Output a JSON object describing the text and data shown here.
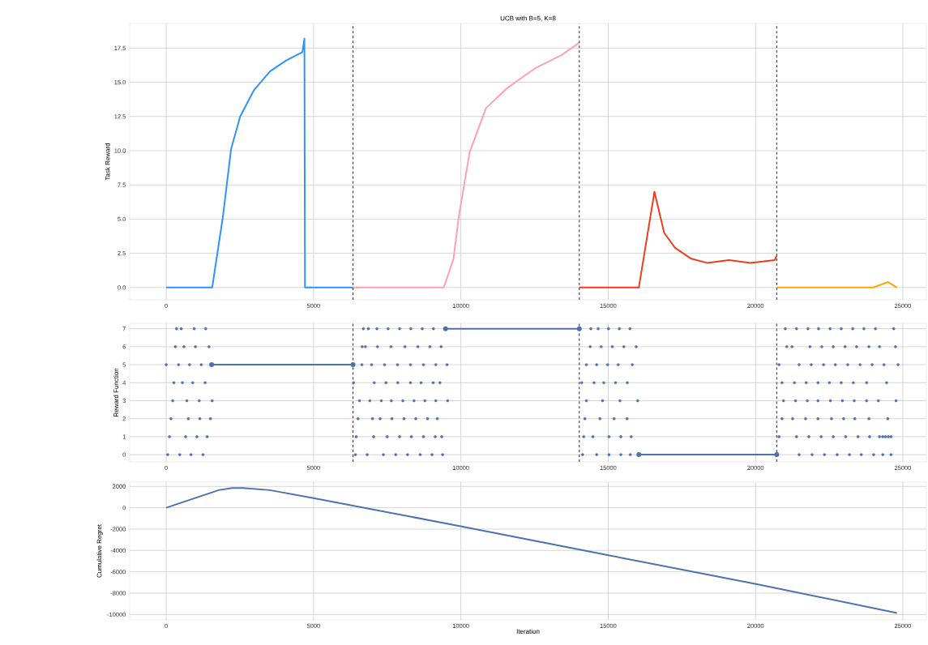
{
  "chart_data": [
    {
      "type": "line",
      "title": "UCB with B=5, K=8",
      "ylabel": "Task Reward",
      "grid": true,
      "xlim": [
        -1240,
        25800
      ],
      "ylim": [
        -0.9,
        19.3
      ],
      "xticks": [
        0,
        5000,
        10000,
        15000,
        20000,
        25000
      ],
      "yticks": [
        {
          "value": 0,
          "label": "0.0"
        },
        {
          "value": 2.5,
          "label": "2.5"
        },
        {
          "value": 5,
          "label": "5.0"
        },
        {
          "value": 7.5,
          "label": "7.5"
        },
        {
          "value": 10,
          "label": "10.0"
        },
        {
          "value": 12.5,
          "label": "12.5"
        },
        {
          "value": 15,
          "label": "15.0"
        },
        {
          "value": 17.5,
          "label": "17.5"
        }
      ],
      "ref_lines": [
        {
          "axis": "x",
          "value": 6340,
          "color": "#222222",
          "line_style": "dashed"
        },
        {
          "axis": "x",
          "value": 14020,
          "color": "#222222",
          "line_style": "dashed"
        },
        {
          "axis": "x",
          "value": 20720,
          "color": "#222222",
          "line_style": "dashed"
        }
      ],
      "series": [
        {
          "color": "#2e93ff",
          "x": [
            0,
            1560,
            1925,
            2200,
            2510,
            2970,
            3520,
            4070,
            4620,
            4690,
            4710,
            6340
          ],
          "values": [
            0,
            0,
            5.2,
            10.1,
            12.5,
            14.4,
            15.8,
            16.6,
            17.2,
            18.2,
            0,
            0
          ]
        },
        {
          "color": "#ffa0b4",
          "x": [
            6340,
            9420,
            9750,
            9930,
            10300,
            10850,
            11580,
            12500,
            13420,
            14020
          ],
          "values": [
            0,
            0,
            2.1,
            5.2,
            9.9,
            13.1,
            14.6,
            16.0,
            17.0,
            17.9
          ]
        },
        {
          "color": "#f03c1e",
          "x": [
            14020,
            16040,
            16570,
            16900,
            17270,
            17820,
            18360,
            19100,
            19830,
            20650,
            20710
          ],
          "values": [
            0,
            0,
            7.0,
            4.0,
            2.9,
            2.1,
            1.8,
            2.0,
            1.8,
            2.0,
            2.3
          ]
        },
        {
          "color": "#ffa500",
          "x": [
            20720,
            24000,
            24500,
            24800
          ],
          "values": [
            0,
            0,
            0.4,
            0
          ]
        }
      ]
    },
    {
      "type": "scatter",
      "ylabel": "Reward Function",
      "grid": true,
      "marker": "circle",
      "xlim": [
        -1240,
        25800
      ],
      "ylim": [
        -0.4,
        7.3
      ],
      "xticks": [
        0,
        5000,
        10000,
        15000,
        20000,
        25000
      ],
      "yticks": [
        0,
        1,
        2,
        3,
        4,
        5,
        6,
        7
      ],
      "ref_lines": [
        {
          "axis": "x",
          "value": 6340,
          "color": "#222222",
          "line_style": "dashed"
        },
        {
          "axis": "x",
          "value": 14020,
          "color": "#222222",
          "line_style": "dashed"
        },
        {
          "axis": "x",
          "value": 20720,
          "color": "#222222",
          "line_style": "dashed"
        }
      ],
      "series": [
        {
          "color": "#4c72b0",
          "x": [
            350,
            510,
            950,
            1340,
            6690,
            6860,
            7150,
            7530,
            7920,
            8300,
            8690,
            9070,
            14410,
            14660,
            15010,
            15380,
            15740,
            21010,
            21390,
            21780,
            22140,
            22530,
            22910,
            23300,
            23680,
            24070,
            24690
          ],
          "values": [
            7,
            7,
            7,
            7,
            7,
            7,
            7,
            7,
            7,
            7,
            7,
            7,
            7,
            7,
            7,
            7,
            7,
            7,
            7,
            7,
            7,
            7,
            7,
            7,
            7,
            7,
            7
          ]
        },
        {
          "color": "#4c72b0",
          "x": [
            310,
            600,
            990,
            1450,
            6650,
            6760,
            7170,
            7630,
            8100,
            8540,
            8950,
            9330,
            14390,
            14760,
            15140,
            15530,
            15950,
            21060,
            21240,
            21850,
            22250,
            22640,
            23040,
            23430,
            23850,
            24210,
            24750
          ],
          "values": [
            6,
            6,
            6,
            6,
            6,
            6,
            6,
            6,
            6,
            6,
            6,
            6,
            6,
            6,
            6,
            6,
            6,
            6,
            6,
            6,
            6,
            6,
            6,
            6,
            6,
            6,
            6
          ]
        },
        {
          "color": "#4c72b0",
          "x": [
            0,
            420,
            790,
            1190,
            6640,
            6970,
            7410,
            7850,
            8290,
            8730,
            9150,
            9530,
            14260,
            14610,
            14980,
            15340,
            15820,
            20800,
            21480,
            21890,
            22310,
            22710,
            23130,
            23550,
            23960,
            24360,
            24840
          ],
          "values": [
            5,
            5,
            5,
            5,
            5,
            5,
            5,
            5,
            5,
            5,
            5,
            5,
            5,
            5,
            5,
            5,
            5,
            5,
            5,
            5,
            5,
            5,
            5,
            5,
            5,
            5,
            5
          ]
        },
        {
          "color": "#4c72b0",
          "x": [
            260,
            550,
            900,
            1320,
            6360,
            7060,
            7460,
            7860,
            8290,
            8650,
            9060,
            9290,
            14100,
            14520,
            14850,
            15250,
            15650,
            20900,
            21320,
            21720,
            22120,
            22510,
            22910,
            23320,
            23770,
            24450
          ],
          "values": [
            4,
            4,
            4,
            4,
            4,
            4,
            4,
            4,
            4,
            4,
            4,
            4,
            4,
            4,
            4,
            4,
            4,
            4,
            4,
            4,
            4,
            4,
            4,
            4,
            4,
            4
          ]
        },
        {
          "color": "#4c72b0",
          "x": [
            220,
            700,
            1120,
            1560,
            6560,
            6910,
            7300,
            7640,
            8030,
            8410,
            8780,
            9150,
            9550,
            14260,
            14810,
            15400,
            16000,
            20950,
            21360,
            21760,
            22120,
            22540,
            22950,
            23350,
            23770,
            24170,
            24770
          ],
          "values": [
            3,
            3,
            3,
            3,
            3,
            3,
            3,
            3,
            3,
            3,
            3,
            3,
            3,
            3,
            3,
            3,
            3,
            3,
            3,
            3,
            3,
            3,
            3,
            3,
            3,
            3,
            3
          ]
        },
        {
          "color": "#4c72b0",
          "x": [
            160,
            750,
            1140,
            1500,
            6510,
            7000,
            7260,
            7660,
            8070,
            8470,
            8870,
            9200,
            14210,
            14720,
            15200,
            15640,
            20900,
            21260,
            21700,
            22120,
            22580,
            22990,
            23370,
            23850,
            24490
          ],
          "values": [
            2,
            2,
            2,
            2,
            2,
            2,
            2,
            2,
            2,
            2,
            2,
            2,
            2,
            2,
            2,
            2,
            2,
            2,
            2,
            2,
            2,
            2,
            2,
            2,
            2
          ]
        },
        {
          "color": "#4c72b0",
          "x": [
            110,
            660,
            1040,
            1390,
            6450,
            7040,
            7500,
            7920,
            8320,
            8730,
            9130,
            9350,
            14170,
            14480,
            15030,
            15430,
            15780,
            20800,
            21390,
            21810,
            22230,
            22640,
            23060,
            23480,
            23870,
            24210,
            24320,
            24410,
            24510,
            24600
          ],
          "values": [
            1,
            1,
            1,
            1,
            1,
            1,
            1,
            1,
            1,
            1,
            1,
            1,
            1,
            1,
            1,
            1,
            1,
            1,
            1,
            1,
            1,
            1,
            1,
            1,
            1,
            1,
            1,
            1,
            1,
            1
          ]
        },
        {
          "color": "#4c72b0",
          "x": [
            50,
            460,
            840,
            1250,
            6420,
            6820,
            7370,
            7790,
            8190,
            8620,
            9020,
            9380,
            14130,
            14610,
            15030,
            15430,
            15750,
            21480,
            21920,
            22340,
            22770,
            23190,
            23590,
            24010,
            24320,
            24600
          ],
          "values": [
            0,
            0,
            0,
            0,
            0,
            0,
            0,
            0,
            0,
            0,
            0,
            0,
            0,
            0,
            0,
            0,
            0,
            0,
            0,
            0,
            0,
            0,
            0,
            0,
            0,
            0
          ]
        },
        {
          "type": "line",
          "color": "#4c72b0",
          "x": [
            1540,
            6340
          ],
          "values": [
            5,
            5
          ]
        },
        {
          "type": "line",
          "color": "#4c72b0",
          "x": [
            9480,
            14020
          ],
          "values": [
            7,
            7
          ]
        },
        {
          "type": "line",
          "color": "#4c72b0",
          "x": [
            16040,
            20720
          ],
          "values": [
            0,
            0
          ]
        }
      ]
    },
    {
      "type": "line",
      "xlabel": "Iteration",
      "ylabel": "Cumulative Regret",
      "grid": true,
      "xlim": [
        -1240,
        25800
      ],
      "ylim": [
        -10500,
        2400
      ],
      "xticks": [
        0,
        5000,
        10000,
        15000,
        20000,
        25000
      ],
      "yticks": [
        -10000,
        -8000,
        -6000,
        -4000,
        -2000,
        0,
        2000
      ],
      "series": [
        {
          "color": "#4c72b0",
          "x": [
            0,
            1780,
            2240,
            2600,
            3520,
            5000,
            10030,
            15010,
            20020,
            24800
          ],
          "values": [
            0,
            1650,
            1850,
            1850,
            1650,
            900,
            -1750,
            -4450,
            -7150,
            -9850
          ]
        }
      ]
    }
  ]
}
